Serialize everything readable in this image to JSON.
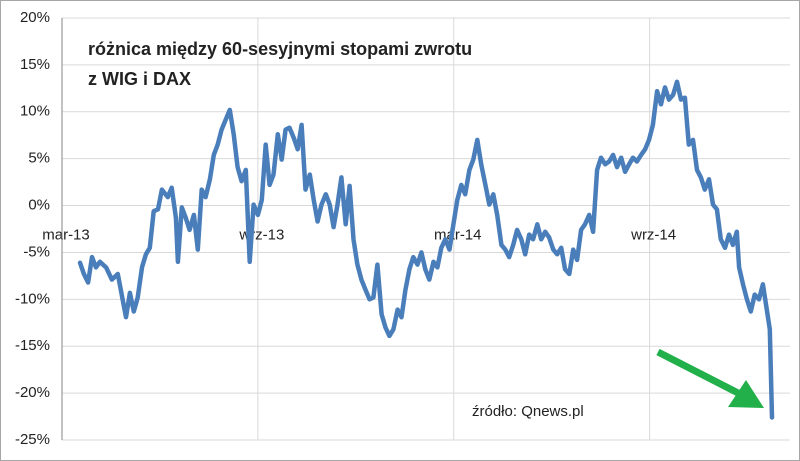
{
  "chart_data": {
    "type": "line",
    "title": [
      "różnica między 60-sesyjnymi stopami zwrotu",
      "z WIG i DAX"
    ],
    "annotation": "źródło: Qnews.pl",
    "xlim": [
      0,
      22.3
    ],
    "xticks": [
      {
        "value": 0,
        "label": "mar-13"
      },
      {
        "value": 6,
        "label": "wrz-13"
      },
      {
        "value": 12,
        "label": "mar-14"
      },
      {
        "value": 18,
        "label": "wrz-14"
      }
    ],
    "ylim": [
      -25,
      20
    ],
    "yticks": [
      {
        "value": -25,
        "label": "-25%"
      },
      {
        "value": -20,
        "label": "-20%"
      },
      {
        "value": -15,
        "label": "-15%"
      },
      {
        "value": -10,
        "label": "-10%"
      },
      {
        "value": -5,
        "label": "-5%"
      },
      {
        "value": 0,
        "label": "0%"
      },
      {
        "value": 5,
        "label": "5%"
      },
      {
        "value": 10,
        "label": "10%"
      },
      {
        "value": 15,
        "label": "15%"
      },
      {
        "value": 20,
        "label": "20%"
      }
    ],
    "grid": true,
    "color": "#4a7ebb",
    "x": [
      0.55,
      0.67,
      0.8,
      0.92,
      1.04,
      1.16,
      1.35,
      1.53,
      1.71,
      1.83,
      1.96,
      2.08,
      2.2,
      2.32,
      2.45,
      2.57,
      2.69,
      2.81,
      2.94,
      3.06,
      3.24,
      3.36,
      3.49,
      3.55,
      3.67,
      3.79,
      3.91,
      4.04,
      4.16,
      4.28,
      4.4,
      4.53,
      4.65,
      4.77,
      4.89,
      5.02,
      5.14,
      5.26,
      5.38,
      5.5,
      5.63,
      5.75,
      5.87,
      6.0,
      6.12,
      6.24,
      6.36,
      6.48,
      6.61,
      6.73,
      6.85,
      6.97,
      7.1,
      7.22,
      7.34,
      7.46,
      7.59,
      7.71,
      7.83,
      7.95,
      8.08,
      8.2,
      8.32,
      8.44,
      8.56,
      8.69,
      8.81,
      8.93,
      9.05,
      9.17,
      9.3,
      9.42,
      9.54,
      9.66,
      9.79,
      9.91,
      10.03,
      10.15,
      10.28,
      10.4,
      10.52,
      10.64,
      10.76,
      10.89,
      11.01,
      11.13,
      11.25,
      11.38,
      11.5,
      11.62,
      11.74,
      11.87,
      11.99,
      12.11,
      12.23,
      12.35,
      12.48,
      12.6,
      12.72,
      12.84,
      12.97,
      13.09,
      13.21,
      13.33,
      13.46,
      13.58,
      13.7,
      13.82,
      13.94,
      14.07,
      14.19,
      14.31,
      14.43,
      14.56,
      14.68,
      14.8,
      14.92,
      15.05,
      15.17,
      15.29,
      15.41,
      15.54,
      15.66,
      15.78,
      15.9,
      16.02,
      16.15,
      16.27,
      16.39,
      16.51,
      16.64,
      16.76,
      16.88,
      17.0,
      17.13,
      17.25,
      17.37,
      17.49,
      17.61,
      17.74,
      17.86,
      17.98,
      18.1,
      18.23,
      18.35,
      18.47,
      18.59,
      18.72,
      18.84,
      18.96,
      19.08,
      19.2,
      19.33,
      19.45,
      19.57,
      19.69,
      19.82,
      19.94,
      20.06,
      20.18,
      20.31,
      20.43,
      20.55,
      20.67,
      20.74,
      20.86,
      20.98,
      21.1,
      21.22,
      21.35,
      21.47,
      21.59,
      21.68,
      21.75
    ],
    "values": [
      -6.1,
      -7.3,
      -8.2,
      -5.5,
      -6.6,
      -6,
      -6.6,
      -7.9,
      -7.3,
      -9.5,
      -11.9,
      -9.3,
      -11.3,
      -9.8,
      -6.6,
      -5.2,
      -4.5,
      -0.6,
      -0.4,
      1.7,
      0.9,
      1.9,
      -1.3,
      -6,
      -0.2,
      -1.3,
      -2.6,
      -1,
      -4.7,
      1.7,
      0.9,
      2.8,
      5.4,
      6.5,
      8.1,
      9.2,
      10.2,
      7.6,
      4.1,
      2.6,
      3.8,
      -6,
      0.1,
      -1,
      0.6,
      6.5,
      2.2,
      3.3,
      7.6,
      4.9,
      8.1,
      8.3,
      7.2,
      6,
      8.6,
      1.7,
      3.3,
      0.6,
      -1.7,
      0.1,
      1.2,
      0.1,
      -2.3,
      0.1,
      3,
      -2,
      2.1,
      -3.6,
      -6.3,
      -7.9,
      -9,
      -10,
      -9.8,
      -6.3,
      -11.6,
      -13,
      -13.9,
      -13.2,
      -11.1,
      -11.9,
      -9,
      -6.8,
      -5.5,
      -6.3,
      -5,
      -6.8,
      -7.9,
      -6,
      -6.6,
      -4.5,
      -3.6,
      -4.7,
      -2,
      0.6,
      2.2,
      1.2,
      3.8,
      4.9,
      7,
      4.4,
      2.2,
      0.1,
      1.2,
      -1,
      -4.2,
      -4.7,
      -5.5,
      -4.2,
      -2.6,
      -3.6,
      -5.2,
      -3.1,
      -3.6,
      -2,
      -3.6,
      -2.8,
      -3.4,
      -4.7,
      -5.2,
      -4.5,
      -6.8,
      -7.3,
      -4.7,
      -5.8,
      -2.6,
      -2,
      -1,
      -2.8,
      3.8,
      5.1,
      4.4,
      4.7,
      5.4,
      4.1,
      5.1,
      3.6,
      4.4,
      5.1,
      4.7,
      5.4,
      6,
      7,
      8.6,
      12.2,
      10.8,
      12.6,
      11.3,
      11.8,
      13.2,
      11.3,
      11.5,
      6.5,
      7,
      3.8,
      3,
      1.7,
      2.8,
      0.1,
      -0.4,
      -3.6,
      -4.5,
      -3.1,
      -4.2,
      -2.8,
      -6.6,
      -8.4,
      -10,
      -11.3,
      -9.5,
      -10,
      -8.4,
      -11.1,
      -13.2,
      -22.6
    ]
  }
}
